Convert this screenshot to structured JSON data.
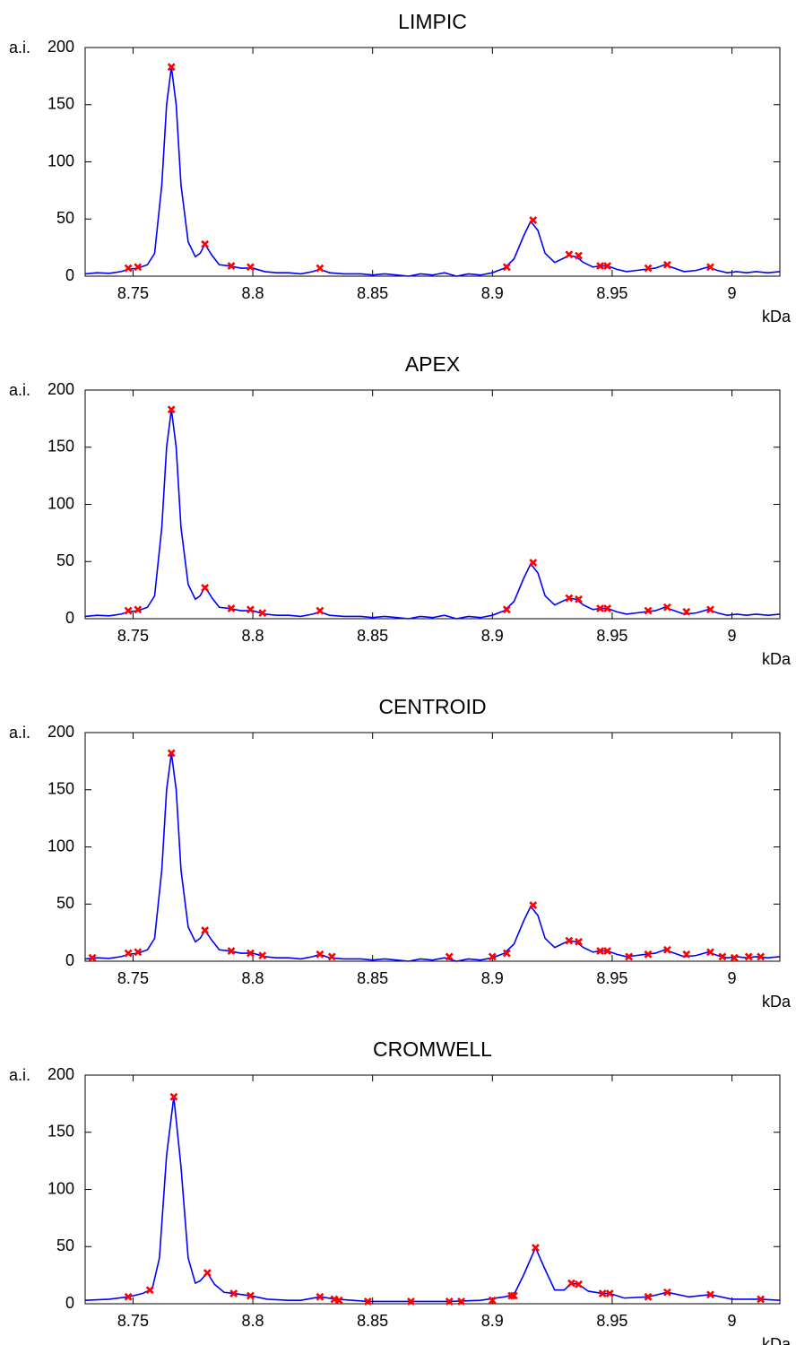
{
  "chart_data": [
    {
      "type": "line",
      "title": "LIMPIC",
      "xlabel": "kDa",
      "ylabel": "a.i.",
      "xlim": [
        8.73,
        9.02
      ],
      "ylim": [
        0,
        200
      ],
      "xticks": [
        8.75,
        8.8,
        8.85,
        8.9,
        8.95,
        9
      ],
      "yticks": [
        0,
        50,
        100,
        150,
        200
      ],
      "box": true,
      "series": [
        {
          "type": "line",
          "color": "#0000ff",
          "x": [
            8.73,
            8.735,
            8.74,
            8.745,
            8.748,
            8.752,
            8.756,
            8.759,
            8.762,
            8.764,
            8.766,
            8.768,
            8.77,
            8.773,
            8.776,
            8.778,
            8.78,
            8.783,
            8.786,
            8.79,
            8.795,
            8.8,
            8.805,
            8.81,
            8.815,
            8.82,
            8.825,
            8.828,
            8.832,
            8.838,
            8.845,
            8.85,
            8.855,
            8.86,
            8.865,
            8.87,
            8.875,
            8.88,
            8.885,
            8.89,
            8.895,
            8.9,
            8.905,
            8.909,
            8.913,
            8.916,
            8.919,
            8.922,
            8.926,
            8.93,
            8.932,
            8.935,
            8.938,
            8.942,
            8.945,
            8.948,
            8.952,
            8.956,
            8.96,
            8.964,
            8.968,
            8.972,
            8.976,
            8.98,
            8.985,
            8.99,
            8.994,
            8.998,
            9.002,
            9.006,
            9.01,
            9.015,
            9.02
          ],
          "values": [
            2,
            3,
            2.5,
            4,
            6,
            7,
            10,
            20,
            80,
            150,
            183,
            150,
            80,
            30,
            17,
            20,
            28,
            18,
            10,
            9,
            7,
            7,
            4,
            3,
            3,
            2,
            4,
            6,
            3,
            2,
            2,
            1,
            2,
            1,
            0,
            2,
            1,
            3,
            0,
            2,
            1,
            3,
            7,
            15,
            35,
            48,
            40,
            20,
            12,
            16,
            18,
            17,
            12,
            8,
            9,
            9,
            6,
            4,
            5,
            6,
            7,
            10,
            7,
            4,
            5,
            8,
            5,
            3,
            4,
            3,
            4,
            3,
            4
          ]
        },
        {
          "type": "scatter",
          "marker": "x",
          "color": "#ff0000",
          "x": [
            8.748,
            8.752,
            8.766,
            8.78,
            8.791,
            8.799,
            8.828,
            8.906,
            8.917,
            8.932,
            8.936,
            8.945,
            8.948,
            8.965,
            8.973,
            8.991
          ],
          "values": [
            7,
            8,
            183,
            28,
            9,
            8,
            7,
            8,
            49,
            19,
            18,
            9,
            9,
            7,
            10,
            8
          ]
        }
      ]
    },
    {
      "type": "line",
      "title": "APEX",
      "xlabel": "kDa",
      "ylabel": "a.i.",
      "xlim": [
        8.73,
        9.02
      ],
      "ylim": [
        0,
        200
      ],
      "xticks": [
        8.75,
        8.8,
        8.85,
        8.9,
        8.95,
        9
      ],
      "yticks": [
        0,
        50,
        100,
        150,
        200
      ],
      "box": true,
      "series": [
        {
          "type": "line",
          "color": "#0000ff",
          "x": [
            8.73,
            8.735,
            8.74,
            8.745,
            8.748,
            8.752,
            8.756,
            8.759,
            8.762,
            8.764,
            8.766,
            8.768,
            8.77,
            8.773,
            8.776,
            8.778,
            8.78,
            8.783,
            8.786,
            8.79,
            8.795,
            8.8,
            8.805,
            8.81,
            8.815,
            8.82,
            8.825,
            8.828,
            8.832,
            8.838,
            8.845,
            8.85,
            8.855,
            8.86,
            8.865,
            8.87,
            8.875,
            8.88,
            8.885,
            8.89,
            8.895,
            8.9,
            8.905,
            8.909,
            8.913,
            8.916,
            8.919,
            8.922,
            8.926,
            8.93,
            8.932,
            8.935,
            8.938,
            8.942,
            8.945,
            8.948,
            8.952,
            8.956,
            8.96,
            8.964,
            8.968,
            8.972,
            8.976,
            8.98,
            8.985,
            8.99,
            8.994,
            8.998,
            9.002,
            9.006,
            9.01,
            9.015,
            9.02
          ],
          "values": [
            2,
            3,
            2.5,
            4,
            6,
            7,
            10,
            20,
            80,
            150,
            183,
            150,
            80,
            30,
            17,
            20,
            28,
            18,
            10,
            9,
            7,
            7,
            4,
            3,
            3,
            2,
            4,
            6,
            3,
            2,
            2,
            1,
            2,
            1,
            0,
            2,
            1,
            3,
            0,
            2,
            1,
            3,
            7,
            15,
            35,
            48,
            40,
            20,
            12,
            16,
            18,
            17,
            12,
            8,
            9,
            9,
            6,
            4,
            5,
            6,
            7,
            10,
            7,
            4,
            5,
            8,
            5,
            3,
            4,
            3,
            4,
            3,
            4
          ]
        },
        {
          "type": "scatter",
          "marker": "x",
          "color": "#ff0000",
          "x": [
            8.748,
            8.752,
            8.766,
            8.78,
            8.791,
            8.799,
            8.804,
            8.828,
            8.906,
            8.917,
            8.932,
            8.936,
            8.945,
            8.948,
            8.965,
            8.973,
            8.981,
            8.991
          ],
          "values": [
            7,
            8,
            183,
            27,
            9,
            8,
            5,
            7,
            8,
            49,
            18,
            17,
            9,
            9,
            7,
            10,
            6,
            8
          ]
        }
      ]
    },
    {
      "type": "line",
      "title": "CENTROID",
      "xlabel": "kDa",
      "ylabel": "a.i.",
      "xlim": [
        8.73,
        9.02
      ],
      "ylim": [
        0,
        200
      ],
      "xticks": [
        8.75,
        8.8,
        8.85,
        8.9,
        8.95,
        9
      ],
      "yticks": [
        0,
        50,
        100,
        150,
        200
      ],
      "box": true,
      "series": [
        {
          "type": "line",
          "color": "#0000ff",
          "x": [
            8.73,
            8.735,
            8.74,
            8.745,
            8.748,
            8.752,
            8.756,
            8.759,
            8.762,
            8.764,
            8.766,
            8.768,
            8.77,
            8.773,
            8.776,
            8.778,
            8.78,
            8.783,
            8.786,
            8.79,
            8.795,
            8.8,
            8.805,
            8.81,
            8.815,
            8.82,
            8.825,
            8.828,
            8.832,
            8.838,
            8.845,
            8.85,
            8.855,
            8.86,
            8.865,
            8.87,
            8.875,
            8.88,
            8.885,
            8.89,
            8.895,
            8.9,
            8.905,
            8.909,
            8.913,
            8.916,
            8.919,
            8.922,
            8.926,
            8.93,
            8.932,
            8.935,
            8.938,
            8.942,
            8.945,
            8.948,
            8.952,
            8.956,
            8.96,
            8.964,
            8.968,
            8.972,
            8.976,
            8.98,
            8.985,
            8.99,
            8.994,
            8.998,
            9.002,
            9.006,
            9.01,
            9.015,
            9.02
          ],
          "values": [
            2,
            3,
            2.5,
            4,
            6,
            7,
            10,
            20,
            80,
            150,
            182,
            150,
            80,
            30,
            17,
            20,
            27,
            18,
            10,
            9,
            7,
            7,
            4,
            3,
            3,
            2,
            4,
            6,
            3,
            2,
            2,
            1,
            2,
            1,
            0,
            2,
            1,
            3,
            0,
            2,
            1,
            3,
            7,
            15,
            35,
            48,
            40,
            20,
            12,
            16,
            18,
            17,
            12,
            8,
            9,
            9,
            6,
            4,
            5,
            6,
            7,
            10,
            7,
            4,
            5,
            8,
            5,
            3,
            4,
            3,
            4,
            3,
            4
          ]
        },
        {
          "type": "scatter",
          "marker": "x",
          "color": "#ff0000",
          "x": [
            8.733,
            8.748,
            8.752,
            8.766,
            8.78,
            8.791,
            8.799,
            8.804,
            8.828,
            8.833,
            8.882,
            8.9,
            8.906,
            8.917,
            8.932,
            8.936,
            8.945,
            8.948,
            8.957,
            8.965,
            8.973,
            8.981,
            8.991,
            8.996,
            9.001,
            9.007,
            9.012
          ],
          "values": [
            3,
            7,
            8,
            182,
            27,
            9,
            7,
            5,
            6,
            4,
            4,
            4,
            7,
            49,
            18,
            17,
            9,
            9,
            4,
            6,
            10,
            6,
            8,
            4,
            3,
            4,
            4
          ]
        }
      ]
    },
    {
      "type": "line",
      "title": "CROMWELL",
      "xlabel": "kDa",
      "ylabel": "a.i.",
      "xlim": [
        8.73,
        9.02
      ],
      "ylim": [
        0,
        200
      ],
      "xticks": [
        8.75,
        8.8,
        8.85,
        8.9,
        8.95,
        9
      ],
      "yticks": [
        0,
        50,
        100,
        150,
        200
      ],
      "box": true,
      "series": [
        {
          "type": "line",
          "color": "#0000ff",
          "x": [
            8.73,
            8.74,
            8.748,
            8.754,
            8.758,
            8.761,
            8.764,
            8.767,
            8.77,
            8.773,
            8.776,
            8.778,
            8.781,
            8.784,
            8.788,
            8.792,
            8.799,
            8.806,
            8.815,
            8.82,
            8.828,
            8.835,
            8.848,
            8.866,
            8.882,
            8.895,
            8.905,
            8.909,
            8.913,
            8.918,
            8.922,
            8.926,
            8.93,
            8.933,
            8.936,
            8.94,
            8.946,
            8.949,
            8.955,
            8.965,
            8.973,
            8.982,
            8.991,
            9.0,
            9.012,
            9.02
          ],
          "values": [
            3,
            4,
            6,
            9,
            13,
            40,
            130,
            181,
            120,
            40,
            18,
            20,
            27,
            17,
            10,
            9,
            7,
            4,
            3,
            3,
            6,
            4,
            2,
            2,
            2,
            3,
            6,
            8,
            25,
            49,
            30,
            12,
            12,
            18,
            17,
            11,
            9,
            9,
            5,
            6,
            10,
            6,
            8,
            4,
            4,
            3
          ]
        },
        {
          "type": "scatter",
          "marker": "x",
          "color": "#ff0000",
          "x": [
            8.748,
            8.757,
            8.767,
            8.781,
            8.792,
            8.799,
            8.828,
            8.834,
            8.836,
            8.848,
            8.866,
            8.882,
            8.887,
            8.9,
            8.908,
            8.909,
            8.918,
            8.933,
            8.936,
            8.946,
            8.949,
            8.965,
            8.973,
            8.991,
            9.012
          ],
          "values": [
            6,
            12,
            181,
            27,
            9,
            7,
            6,
            4,
            3,
            2,
            2,
            2,
            2,
            3,
            7,
            7,
            49,
            18,
            17,
            9,
            9,
            6,
            10,
            8,
            4
          ]
        }
      ]
    }
  ]
}
